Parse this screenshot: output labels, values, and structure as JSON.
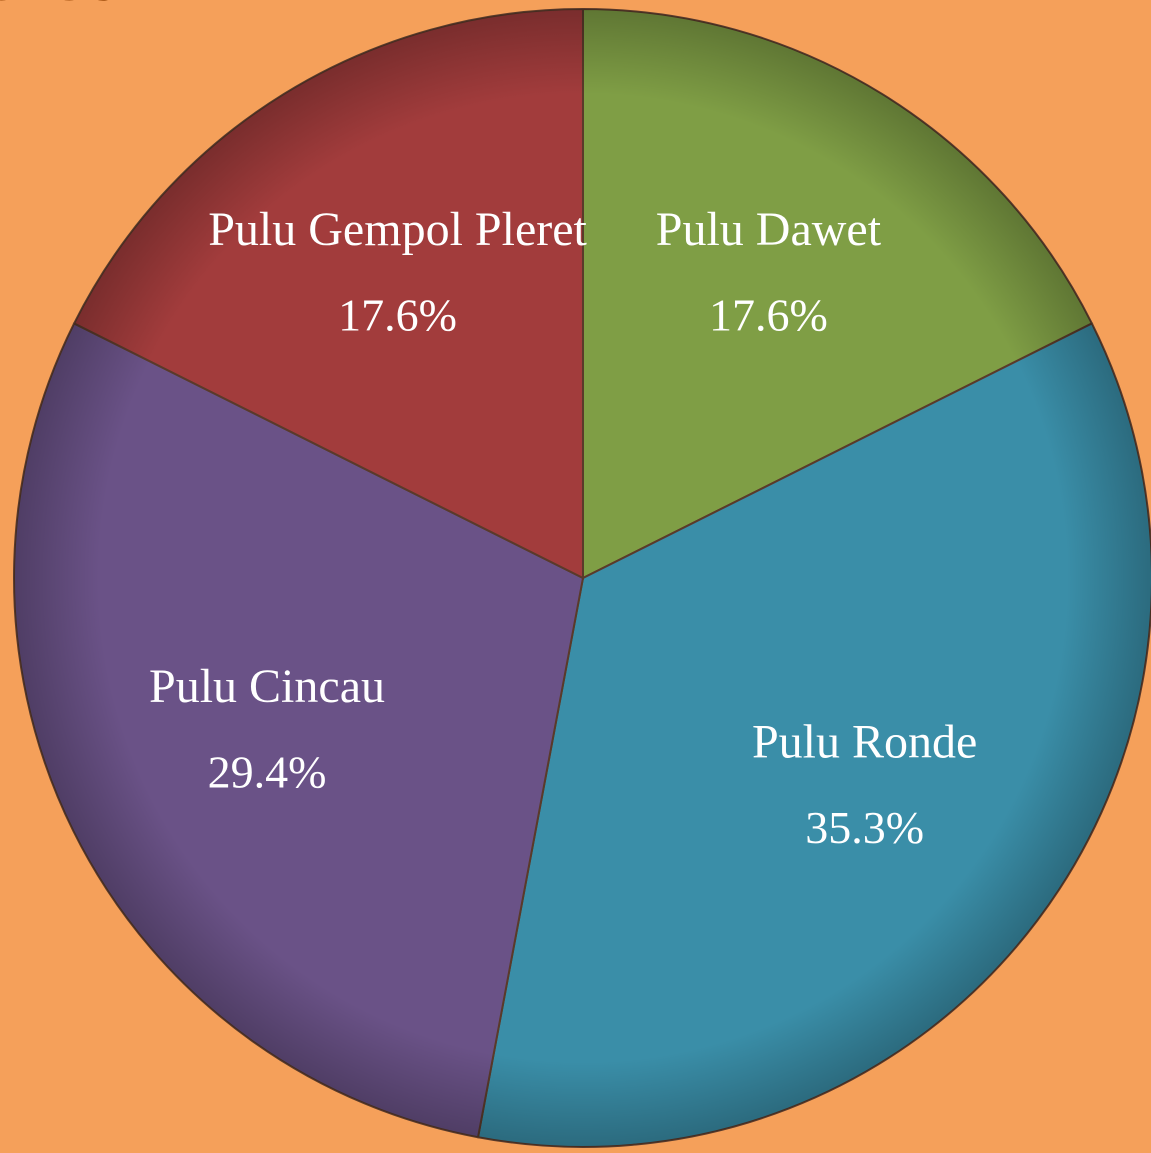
{
  "chart_data": {
    "type": "pie",
    "title": "lered",
    "categories": [
      "Pulu Dawet",
      "Pulu Ronde",
      "Pulu Cincau",
      "Pulu Gempol Pleret"
    ],
    "values": [
      17.6,
      35.3,
      29.4,
      17.6
    ],
    "value_labels": [
      "17.6%",
      "35.3%",
      "29.4%",
      "17.6%"
    ],
    "colors": [
      "#7f9e45",
      "#3a8ea8",
      "#6a5287",
      "#a23c3c"
    ]
  }
}
